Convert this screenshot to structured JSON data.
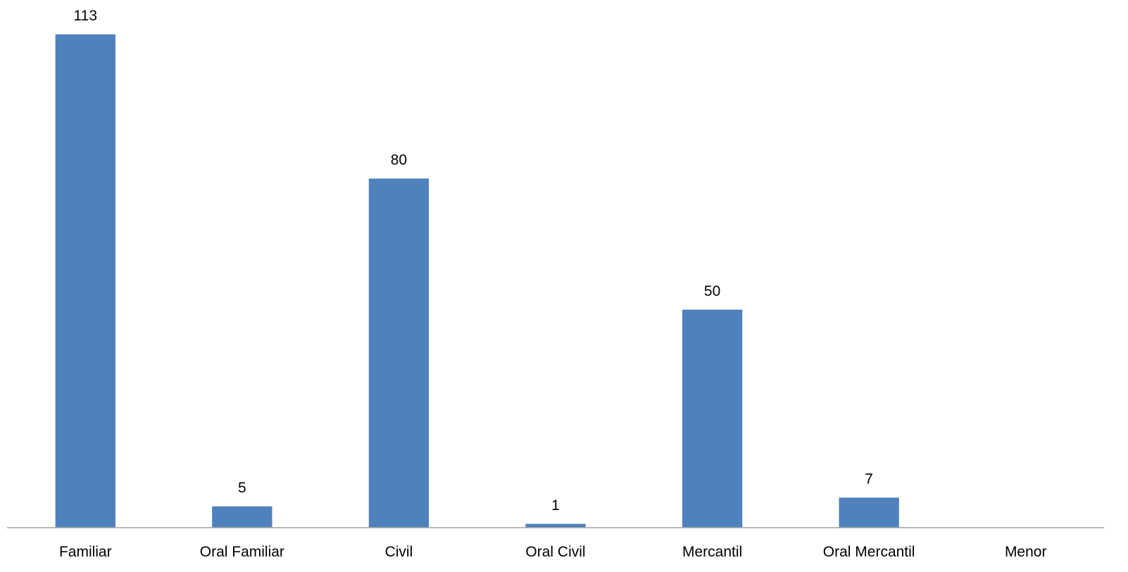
{
  "chart_data": {
    "type": "bar",
    "categories": [
      "Familiar",
      "Oral Familiar",
      "Civil",
      "Oral Civil",
      "Mercantil",
      "Oral Mercantil",
      "Menor"
    ],
    "values": [
      113,
      5,
      80,
      1,
      50,
      7,
      0
    ],
    "data_labels": [
      "113",
      "5",
      "80",
      "1",
      "50",
      "7",
      ""
    ],
    "title": "",
    "xlabel": "",
    "ylabel": "",
    "ylim": [
      0,
      113
    ],
    "grid": false,
    "legend": "none",
    "bar_color": "#4F81BD"
  }
}
